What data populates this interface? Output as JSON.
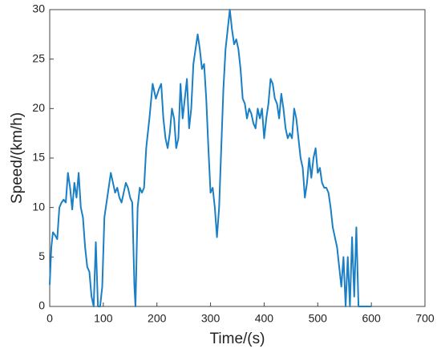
{
  "chart_data": {
    "type": "line",
    "x_label": "Time/(s)",
    "y_label": "Speed/(km/h)",
    "xlim": [
      0,
      700
    ],
    "xticks": [
      0,
      100,
      200,
      300,
      400,
      500,
      600,
      700
    ],
    "ylim": [
      0,
      30
    ],
    "yticks": [
      0,
      5,
      10,
      15,
      20,
      25,
      30
    ],
    "grid": false,
    "x": [
      0,
      3,
      6,
      10,
      14,
      18,
      22,
      26,
      30,
      34,
      38,
      42,
      46,
      50,
      54,
      58,
      62,
      66,
      70,
      74,
      78,
      82,
      86,
      90,
      94,
      98,
      102,
      106,
      110,
      114,
      118,
      122,
      126,
      130,
      134,
      138,
      142,
      146,
      150,
      154,
      158,
      160,
      164,
      168,
      172,
      176,
      180,
      186,
      192,
      198,
      204,
      208,
      212,
      216,
      220,
      224,
      228,
      232,
      236,
      240,
      244,
      248,
      252,
      256,
      260,
      264,
      268,
      272,
      276,
      280,
      284,
      288,
      292,
      296,
      300,
      304,
      308,
      312,
      316,
      320,
      324,
      328,
      332,
      336,
      340,
      344,
      348,
      352,
      356,
      360,
      364,
      368,
      372,
      376,
      380,
      384,
      388,
      392,
      396,
      400,
      404,
      408,
      412,
      416,
      420,
      424,
      428,
      432,
      436,
      440,
      444,
      448,
      452,
      456,
      460,
      464,
      468,
      472,
      476,
      480,
      484,
      488,
      492,
      496,
      500,
      504,
      508,
      512,
      516,
      520,
      524,
      528,
      532,
      536,
      540,
      544,
      548,
      552,
      556,
      560,
      564,
      568,
      572,
      576,
      580,
      590,
      600
    ],
    "series": [
      {
        "name": "Speed",
        "color": "#1a7fc4",
        "values": [
          2.2,
          6,
          7.5,
          7.2,
          6.8,
          10,
          10.5,
          10.8,
          10.5,
          13.5,
          12,
          9.8,
          12.5,
          11,
          13.5,
          10,
          9,
          6,
          4,
          3.5,
          1,
          0,
          6.5,
          0,
          0,
          2,
          9,
          10.5,
          12,
          13.5,
          12.5,
          11.5,
          12,
          11,
          10.5,
          11.5,
          12.5,
          12,
          11,
          10.5,
          2,
          0,
          10,
          12,
          11.5,
          12,
          16,
          19,
          22.5,
          21,
          22,
          22.5,
          19,
          17,
          16,
          17.5,
          20,
          19,
          16,
          17,
          22.5,
          19,
          21,
          23,
          18,
          20,
          24.5,
          26,
          27.5,
          26,
          24,
          24.5,
          21,
          16,
          11.5,
          12,
          10,
          7,
          10,
          16,
          22,
          26,
          28,
          30,
          28,
          26.5,
          27,
          26,
          24,
          21,
          20.5,
          19,
          20,
          19.5,
          18.5,
          18,
          20,
          19,
          20,
          17,
          19,
          20.5,
          23,
          22.5,
          21,
          20.5,
          19,
          21.5,
          20,
          18,
          17,
          17.5,
          17,
          20,
          19,
          17,
          15,
          14,
          11,
          12.5,
          15,
          13,
          15,
          16,
          13.5,
          14,
          12.5,
          12,
          12,
          11.5,
          10,
          8,
          7,
          6,
          4,
          2,
          5,
          0,
          5,
          0,
          7,
          1,
          8,
          0,
          0,
          0,
          0
        ]
      }
    ]
  }
}
